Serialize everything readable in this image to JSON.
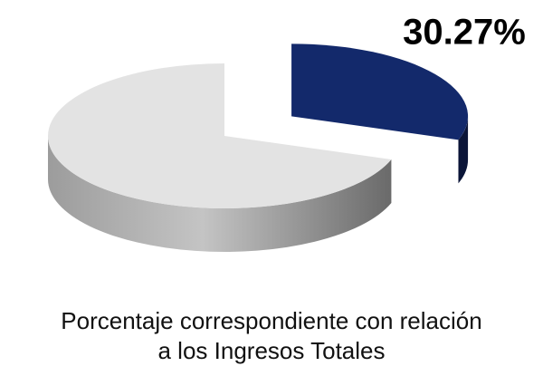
{
  "chart_data": {
    "type": "pie",
    "title": "Porcentaje correspondiente con relación a los Ingresos Totales",
    "categories": [
      null,
      null
    ],
    "values": [
      30.27,
      69.73
    ],
    "value_labels": [
      "30.27%",
      null
    ],
    "colors": [
      "#13296b",
      "#e3e3e3"
    ]
  }
}
